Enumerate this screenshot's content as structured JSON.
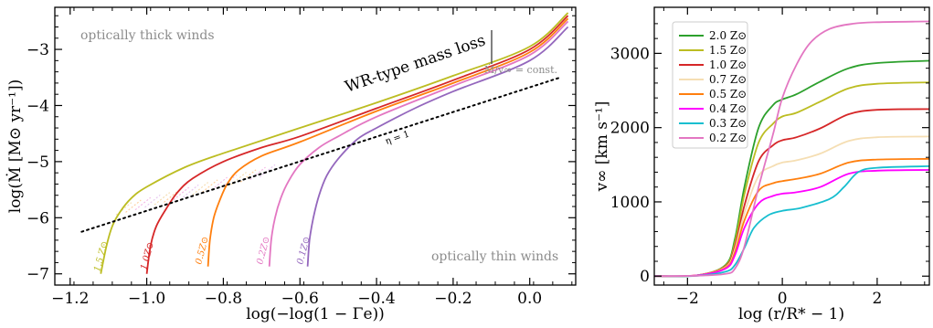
{
  "colors": {
    "2.0": "#2ca02c",
    "1.5": "#bcbd22",
    "1.0": "#d62728",
    "0.7": "#f5deb3",
    "0.5": "#ff7f0e",
    "0.4": "#ff00ff",
    "0.3": "#17becf",
    "0.2": "#e377c2",
    "0.1": "#9467bd",
    "dotted": "#000000",
    "annotation": "#8c8c8c"
  },
  "chart_data": [
    {
      "type": "line",
      "xlabel": "log(−log(1 − Γe))",
      "ylabel": "log(Ṁ [M⊙ yr⁻¹])",
      "xlim": [
        -1.24,
        0.12
      ],
      "ylim": [
        -7.2,
        -2.25
      ],
      "xticks": [
        "−1.2",
        "−1.0",
        "−0.8",
        "−0.6",
        "−0.4",
        "−0.2",
        "0.0"
      ],
      "xtick_values": [
        -1.2,
        -1.0,
        -0.8,
        -0.6,
        -0.4,
        -0.2,
        0.0
      ],
      "yticks": [
        "−3",
        "−4",
        "−5",
        "−6",
        "−7"
      ],
      "ytick_values": [
        -3,
        -4,
        -5,
        -6,
        -7
      ],
      "annotations": {
        "thick": "optically thick winds",
        "thin": "optically thin winds",
        "wr": "WR-type mass loss",
        "eta": "η = 1",
        "const": "Ṁ/v∞ = const."
      },
      "series": [
        {
          "name": "1.5 Z⊙",
          "color_key": "1.5",
          "label": "1.5 Z⊙",
          "x": [
            -1.12,
            -1.105,
            -1.09,
            -1.07,
            -1.04,
            -1.0,
            -0.9,
            -0.8,
            -0.6,
            -0.4,
            -0.2,
            0.0,
            0.1
          ],
          "y": [
            -7.0,
            -6.5,
            -6.15,
            -5.9,
            -5.65,
            -5.45,
            -5.1,
            -4.85,
            -4.4,
            -3.95,
            -3.47,
            -2.95,
            -2.35
          ]
        },
        {
          "name": "1.0 Z⊙",
          "color_key": "1.0",
          "label": "1.0Z⊙",
          "x": [
            -1.0,
            -0.99,
            -0.975,
            -0.95,
            -0.92,
            -0.88,
            -0.8,
            -0.7,
            -0.6,
            -0.4,
            -0.2,
            0.0,
            0.1
          ],
          "y": [
            -7.0,
            -6.5,
            -6.15,
            -5.85,
            -5.55,
            -5.3,
            -5.0,
            -4.75,
            -4.55,
            -4.05,
            -3.55,
            -3.0,
            -2.4
          ]
        },
        {
          "name": "0.5 Z⊙",
          "color_key": "0.5",
          "label": "0.5Z⊙",
          "x": [
            -0.84,
            -0.835,
            -0.825,
            -0.81,
            -0.79,
            -0.76,
            -0.7,
            -0.6,
            -0.4,
            -0.2,
            0.0,
            0.1
          ],
          "y": [
            -6.87,
            -6.4,
            -6.0,
            -5.7,
            -5.4,
            -5.15,
            -4.9,
            -4.65,
            -4.1,
            -3.6,
            -3.05,
            -2.45
          ]
        },
        {
          "name": "0.2 Z⊙",
          "color_key": "0.2",
          "label": "0.2Z⊙",
          "x": [
            -0.68,
            -0.675,
            -0.665,
            -0.65,
            -0.63,
            -0.6,
            -0.55,
            -0.5,
            -0.4,
            -0.2,
            0.0,
            0.1
          ],
          "y": [
            -6.87,
            -6.4,
            -6.0,
            -5.65,
            -5.35,
            -5.05,
            -4.75,
            -4.55,
            -4.2,
            -3.65,
            -3.1,
            -2.5
          ]
        },
        {
          "name": "0.1 Z⊙",
          "color_key": "0.1",
          "label": "0.1Z⊙",
          "x": [
            -0.58,
            -0.575,
            -0.565,
            -0.55,
            -0.53,
            -0.5,
            -0.45,
            -0.4,
            -0.3,
            -0.2,
            0.0,
            0.1
          ],
          "y": [
            -6.87,
            -6.4,
            -6.0,
            -5.6,
            -5.25,
            -4.95,
            -4.6,
            -4.4,
            -4.05,
            -3.75,
            -3.2,
            -2.6
          ]
        },
        {
          "name": "η = 1",
          "color_key": "dotted",
          "x": [
            -1.17,
            0.08
          ],
          "y": [
            -6.25,
            -3.5
          ]
        }
      ]
    },
    {
      "type": "line",
      "xlabel": "log (r/R* − 1)",
      "ylabel": "v∞ [km s⁻¹]",
      "xlim": [
        -2.7,
        3.1
      ],
      "ylim": [
        -120,
        3620
      ],
      "xticks": [
        "−2",
        "0",
        "2"
      ],
      "xtick_values": [
        -2,
        0,
        2
      ],
      "yticks": [
        "0",
        "1000",
        "2000",
        "3000"
      ],
      "ytick_values": [
        0,
        1000,
        2000,
        3000
      ],
      "legend": {
        "location": "upper left",
        "entries": [
          "2.0 Z⊙",
          "1.5 Z⊙",
          "1.0 Z⊙",
          "0.7 Z⊙",
          "0.5 Z⊙",
          "0.4 Z⊙",
          "0.3 Z⊙",
          "0.2 Z⊙"
        ]
      },
      "series": [
        {
          "name": "2.0 Z⊙",
          "color_key": "2.0",
          "x": [
            -2.7,
            -1.8,
            -1.2,
            -1.0,
            -0.8,
            -0.5,
            -0.2,
            0.0,
            0.3,
            0.8,
            1.4,
            2.0,
            3.1
          ],
          "y": [
            0,
            10,
            150,
            500,
            1200,
            2000,
            2300,
            2380,
            2450,
            2620,
            2800,
            2870,
            2900
          ]
        },
        {
          "name": "1.5 Z⊙",
          "color_key": "1.5",
          "x": [
            -2.7,
            -1.8,
            -1.2,
            -1.0,
            -0.8,
            -0.5,
            -0.2,
            0.0,
            0.3,
            0.8,
            1.4,
            2.0,
            3.1
          ],
          "y": [
            0,
            10,
            140,
            450,
            1100,
            1800,
            2050,
            2150,
            2200,
            2350,
            2530,
            2590,
            2610
          ]
        },
        {
          "name": "1.0 Z⊙",
          "color_key": "1.0",
          "x": [
            -2.7,
            -1.8,
            -1.2,
            -1.0,
            -0.8,
            -0.5,
            -0.2,
            0.0,
            0.3,
            0.8,
            1.4,
            2.0,
            3.1
          ],
          "y": [
            0,
            10,
            130,
            400,
            950,
            1550,
            1760,
            1830,
            1870,
            1990,
            2180,
            2240,
            2250
          ]
        },
        {
          "name": "0.7 Z⊙",
          "color_key": "0.7",
          "x": [
            -2.7,
            -1.8,
            -1.2,
            -1.0,
            -0.8,
            -0.5,
            -0.2,
            0.0,
            0.3,
            0.8,
            1.4,
            2.0,
            3.1
          ],
          "y": [
            0,
            10,
            120,
            360,
            850,
            1350,
            1480,
            1530,
            1560,
            1650,
            1820,
            1870,
            1880
          ]
        },
        {
          "name": "0.5 Z⊙",
          "color_key": "0.5",
          "x": [
            -2.7,
            -1.8,
            -1.2,
            -1.0,
            -0.8,
            -0.5,
            -0.2,
            0.0,
            0.3,
            0.8,
            1.4,
            2.0,
            3.1
          ],
          "y": [
            0,
            10,
            110,
            320,
            750,
            1150,
            1250,
            1280,
            1310,
            1380,
            1530,
            1570,
            1580
          ]
        },
        {
          "name": "0.4 Z⊙",
          "color_key": "0.4",
          "x": [
            -2.7,
            -1.8,
            -1.2,
            -1.0,
            -0.8,
            -0.5,
            -0.2,
            0.0,
            0.3,
            0.8,
            1.4,
            2.0,
            3.1
          ],
          "y": [
            0,
            10,
            100,
            280,
            650,
            980,
            1080,
            1110,
            1130,
            1200,
            1380,
            1420,
            1430
          ]
        },
        {
          "name": "0.3 Z⊙",
          "color_key": "0.3",
          "x": [
            -2.7,
            -1.8,
            -1.2,
            -1.0,
            -0.8,
            -0.6,
            -0.3,
            0.0,
            0.4,
            1.0,
            1.3,
            1.6,
            2.0,
            3.1
          ],
          "y": [
            0,
            5,
            60,
            150,
            380,
            650,
            820,
            880,
            920,
            1040,
            1200,
            1400,
            1460,
            1480
          ]
        },
        {
          "name": "0.2 Z⊙",
          "color_key": "0.2",
          "x": [
            -2.7,
            -1.8,
            -1.2,
            -1.0,
            -0.8,
            -0.5,
            -0.2,
            0.0,
            0.3,
            0.6,
            1.0,
            1.5,
            2.0,
            3.1
          ],
          "y": [
            0,
            5,
            30,
            100,
            400,
            1200,
            1900,
            2400,
            2850,
            3150,
            3330,
            3400,
            3420,
            3430
          ]
        }
      ]
    }
  ]
}
